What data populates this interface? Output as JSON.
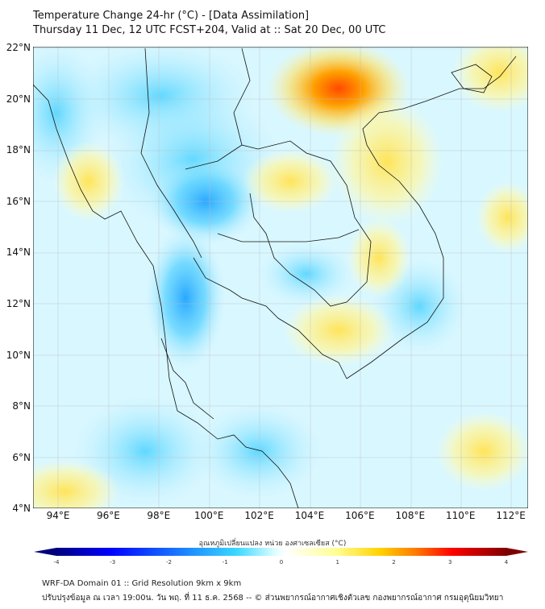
{
  "title": "Temperature Change 24-hr (°C) - [Data Assimilation]",
  "subtitle": "Thursday 11 Dec, 12 UTC FCST+204, Valid at :: Sat 20 Dec, 00 UTC",
  "lat_labels": [
    "22°N",
    "20°N",
    "18°N",
    "16°N",
    "14°N",
    "12°N",
    "10°N",
    "8°N",
    "6°N",
    "4°N"
  ],
  "lon_labels": [
    "94°E",
    "96°E",
    "98°E",
    "100°E",
    "102°E",
    "104°E",
    "106°E",
    "108°E",
    "110°E",
    "112°E"
  ],
  "colorbar": {
    "title": "อุณหภูมิเปลี่ยนแปลง หน่วย องศาเซลเซียส (°C)",
    "ticks": [
      "-4",
      "-3",
      "-2",
      "-1",
      "0",
      "1",
      "2",
      "3",
      "4"
    ],
    "min": -4,
    "max": 4,
    "colors": [
      "#00007f",
      "#0000ff",
      "#1e90ff",
      "#3cd7ff",
      "#e6ffff",
      "#ffffff",
      "#ffff96",
      "#ffd200",
      "#ff7800",
      "#ff0000",
      "#7f0000"
    ]
  },
  "footer": {
    "line1": "WRF-DA Domain 01 :: Grid Resolution 9km x 9km",
    "line2": "ปรับปรุงข้อมูล ณ เวลา 19:00น. วัน พฤ. ที่ 11 ธ.ค. 2568 -- © ส่วนพยากรณ์อากาศเชิงตัวเลข กองพยากรณ์อากาศ กรมอุตุนิยมวิทยา"
  }
}
